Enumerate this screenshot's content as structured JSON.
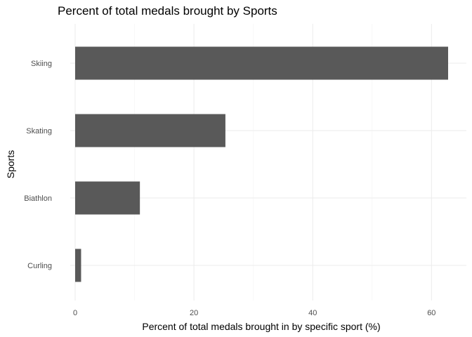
{
  "chart_data": {
    "type": "bar",
    "orientation": "horizontal",
    "title": "Percent of total medals brought by Sports",
    "xlabel": "Percent of total medals brought in by specific sport (%)",
    "ylabel": "Sports",
    "categories": [
      "Skiing",
      "Skating",
      "Biathlon",
      "Curling"
    ],
    "values": [
      62.8,
      25.3,
      10.9,
      1.0
    ],
    "xlim": [
      0,
      65
    ],
    "xticks": [
      0,
      20,
      40,
      60
    ],
    "grid": true,
    "bar_color": "#595959",
    "grid_color": "#ebebeb"
  }
}
